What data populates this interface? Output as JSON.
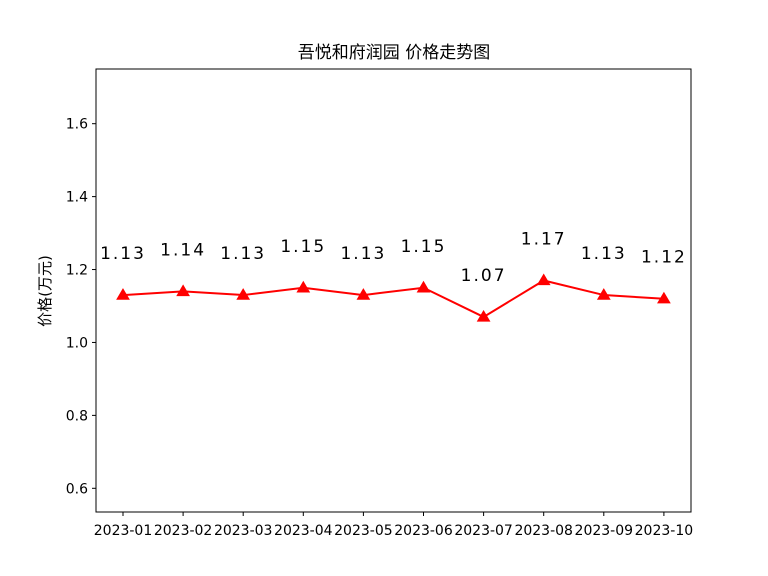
{
  "chart_data": {
    "type": "line",
    "title": "吾悦和府润园 价格走势图",
    "xlabel": "",
    "ylabel": "价格(万元)",
    "categories": [
      "2023-01",
      "2023-02",
      "2023-03",
      "2023-04",
      "2023-05",
      "2023-06",
      "2023-07",
      "2023-08",
      "2023-09",
      "2023-10"
    ],
    "series": [
      {
        "values": [
          1.13,
          1.14,
          1.13,
          1.15,
          1.13,
          1.15,
          1.07,
          1.17,
          1.13,
          1.12
        ],
        "color": "#ff0000",
        "marker": "triangle"
      }
    ],
    "data_labels": [
      "1.13",
      "1.14",
      "1.13",
      "1.15",
      "1.13",
      "1.15",
      "1.07",
      "1.17",
      "1.13",
      "1.12"
    ],
    "ylim": [
      0.535,
      1.75
    ],
    "yticks": [
      0.6,
      0.8,
      1.0,
      1.2,
      1.4,
      1.6
    ],
    "ytick_labels": [
      "0.6",
      "0.8",
      "1.0",
      "1.2",
      "1.4",
      "1.6"
    ],
    "grid": false,
    "legend": "none"
  }
}
